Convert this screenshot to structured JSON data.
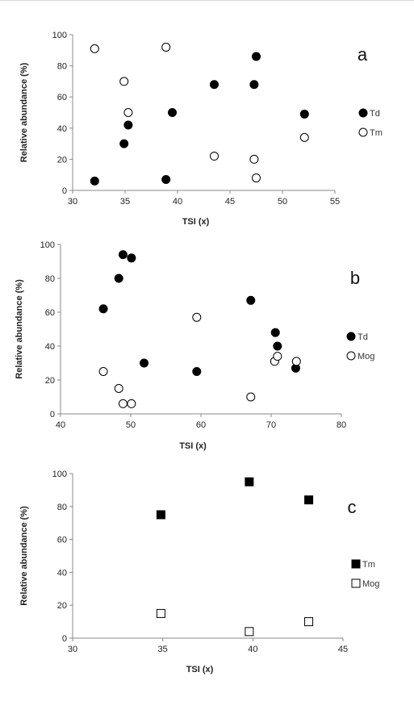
{
  "chart_data": [
    {
      "type": "scatter",
      "panel_label": "a",
      "xlabel": "TSI (x)",
      "ylabel": "Relative abundance (%)",
      "xlim": [
        30,
        55
      ],
      "ylim": [
        0,
        100
      ],
      "xticks": [
        30,
        35,
        40,
        45,
        50,
        55
      ],
      "yticks": [
        0,
        20,
        40,
        60,
        80,
        100
      ],
      "legend_position": "right",
      "grid": false,
      "series": [
        {
          "name": "Td",
          "marker": "filled-circle",
          "points": [
            [
              32.1,
              6
            ],
            [
              34.9,
              30
            ],
            [
              35.3,
              42
            ],
            [
              38.9,
              7
            ],
            [
              39.5,
              50
            ],
            [
              43.5,
              68
            ],
            [
              47.3,
              68
            ],
            [
              47.5,
              86
            ],
            [
              52.1,
              49
            ]
          ]
        },
        {
          "name": "Tm",
          "marker": "open-circle",
          "points": [
            [
              32.1,
              91
            ],
            [
              34.9,
              70
            ],
            [
              35.3,
              50
            ],
            [
              38.9,
              92
            ],
            [
              43.5,
              22
            ],
            [
              47.3,
              20
            ],
            [
              47.5,
              8
            ],
            [
              52.1,
              34
            ]
          ]
        }
      ]
    },
    {
      "type": "scatter",
      "panel_label": "b",
      "xlabel": "TSI (x)",
      "ylabel": "Relative abundance (%)",
      "xlim": [
        40,
        80
      ],
      "ylim": [
        0,
        100
      ],
      "xticks": [
        40,
        50,
        60,
        70,
        80
      ],
      "yticks": [
        0,
        20,
        40,
        60,
        80,
        100
      ],
      "legend_position": "right",
      "grid": false,
      "series": [
        {
          "name": "Td",
          "marker": "filled-circle",
          "points": [
            [
              46.1,
              62
            ],
            [
              48.3,
              80
            ],
            [
              48.9,
              94
            ],
            [
              50.1,
              92
            ],
            [
              51.9,
              30
            ],
            [
              59.4,
              25
            ],
            [
              67.1,
              67
            ],
            [
              70.6,
              48
            ],
            [
              70.9,
              40
            ],
            [
              73.5,
              27
            ]
          ]
        },
        {
          "name": "Mog",
          "marker": "open-circle",
          "points": [
            [
              46.1,
              25
            ],
            [
              48.3,
              15
            ],
            [
              48.9,
              6
            ],
            [
              50.1,
              6
            ],
            [
              59.4,
              57
            ],
            [
              67.1,
              10
            ],
            [
              70.5,
              31
            ],
            [
              70.9,
              34
            ],
            [
              73.6,
              31
            ]
          ]
        }
      ]
    },
    {
      "type": "scatter",
      "panel_label": "c",
      "xlabel": "TSI (x)",
      "ylabel": "Relative abundance (%)",
      "xlim": [
        30,
        45
      ],
      "ylim": [
        0,
        100
      ],
      "xticks": [
        30,
        35,
        40,
        45
      ],
      "yticks": [
        0,
        20,
        40,
        60,
        80,
        100
      ],
      "legend_position": "right",
      "grid": false,
      "series": [
        {
          "name": "Tm",
          "marker": "filled-square",
          "points": [
            [
              34.9,
              75
            ],
            [
              39.8,
              95
            ],
            [
              43.1,
              84
            ]
          ]
        },
        {
          "name": "Mog",
          "marker": "open-square",
          "points": [
            [
              34.9,
              15
            ],
            [
              39.8,
              4
            ],
            [
              43.1,
              10
            ]
          ]
        }
      ]
    }
  ]
}
